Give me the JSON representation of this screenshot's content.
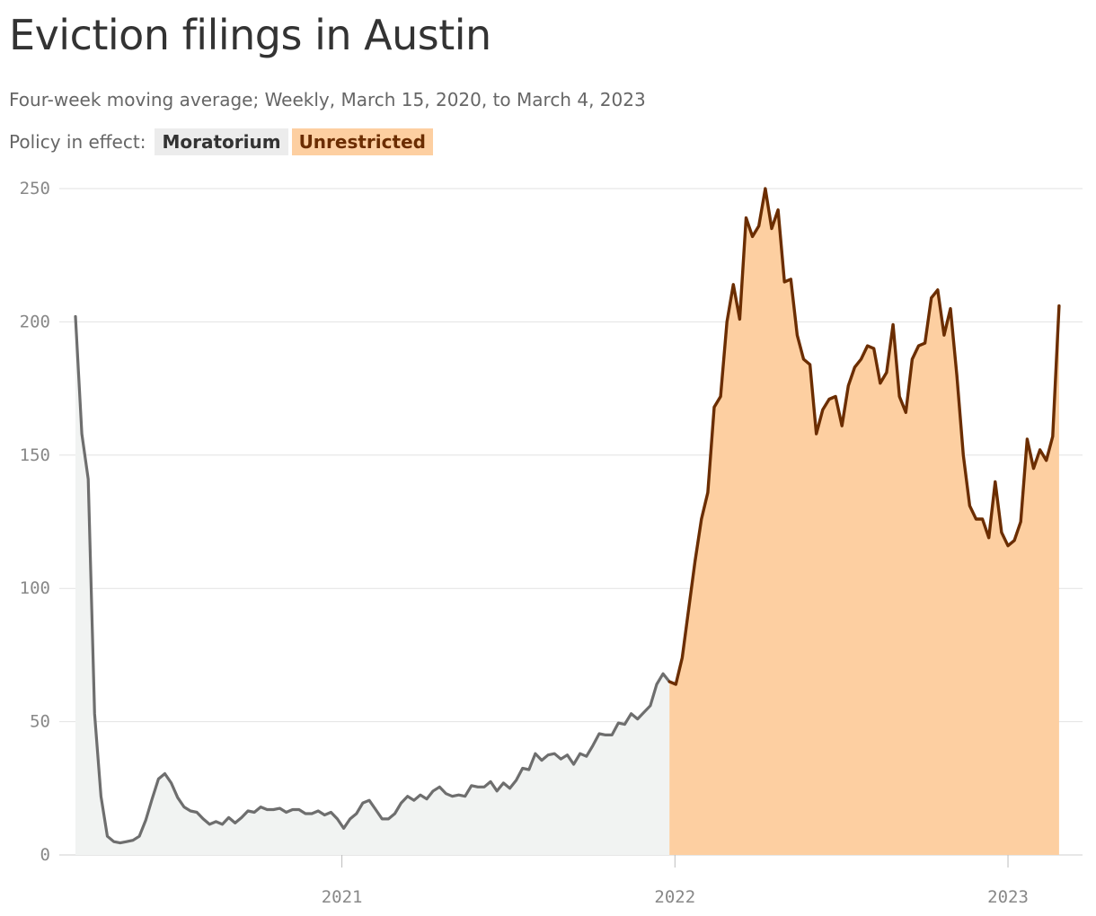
{
  "title": "Eviction filings in Austin",
  "subtitle": "Four-week moving average; Weekly, March 15, 2020, to March 4, 2023",
  "legend": {
    "label": "Policy in effect:",
    "moratorium": "Moratorium",
    "unrestricted": "Unrestricted"
  },
  "colors": {
    "moratorium_fill": "#f1f3f2",
    "moratorium_line": "#6e6e6e",
    "unrestricted_fill": "#fdcfa1",
    "unrestricted_line": "#6b2d00"
  },
  "chart_data": {
    "type": "area",
    "title": "Eviction filings in Austin",
    "subtitle": "Four-week moving average; Weekly, March 15, 2020, to March 4, 2023",
    "xlabel": "",
    "ylabel": "",
    "x_start": "2020-03-15",
    "x_end": "2023-03-04",
    "interval": "weekly",
    "ylim": [
      0,
      250
    ],
    "yticks": [
      0,
      50,
      100,
      150,
      200,
      250
    ],
    "xticks": [
      {
        "label": "2021",
        "date": "2021-01-01"
      },
      {
        "label": "2022",
        "date": "2022-01-01"
      },
      {
        "label": "2023",
        "date": "2023-01-01"
      }
    ],
    "grid": true,
    "series": [
      {
        "name": "Moratorium",
        "x_start": "2020-03-15",
        "values": [
          202,
          158,
          141,
          53,
          22,
          7,
          5,
          4.5,
          5,
          5.5,
          7,
          13,
          21,
          28.5,
          30.5,
          27,
          21.5,
          18,
          16.5,
          16,
          13.5,
          11.5,
          12.5,
          11.5,
          14,
          12,
          14,
          16.5,
          16,
          18,
          17,
          17,
          17.5,
          16,
          17,
          17,
          15.5,
          15.5,
          16.5,
          15,
          16,
          13.5,
          10,
          13.5,
          15.5,
          19.5,
          20.5,
          17,
          13.5,
          13.5,
          15.5,
          19.5,
          22,
          20.5,
          22.5,
          21,
          24,
          25.5,
          23,
          22,
          22.5,
          22,
          26,
          25.5,
          25.5,
          27.5,
          24,
          27,
          25,
          28,
          32.5,
          32,
          38,
          35.5,
          37.5,
          38,
          36,
          37.5,
          34,
          38,
          37,
          41,
          45.5,
          45,
          45,
          49.5,
          49,
          53,
          51,
          53.5,
          56,
          64,
          68,
          65
        ]
      },
      {
        "name": "Unrestricted",
        "x_start": "2021-12-26",
        "values": [
          65,
          64,
          74,
          92,
          110,
          126,
          136,
          168,
          172,
          200,
          214,
          201,
          239,
          232,
          236,
          250,
          235,
          242,
          215,
          216,
          195,
          186,
          184,
          158,
          167,
          171,
          172,
          161,
          176,
          183,
          186,
          191,
          190,
          177,
          181,
          199,
          172,
          166,
          186,
          191,
          192,
          209,
          212,
          195,
          205,
          180,
          150,
          131,
          126,
          126,
          119,
          140,
          121,
          116,
          118,
          125,
          156,
          145,
          152,
          148,
          157,
          206
        ]
      }
    ]
  }
}
